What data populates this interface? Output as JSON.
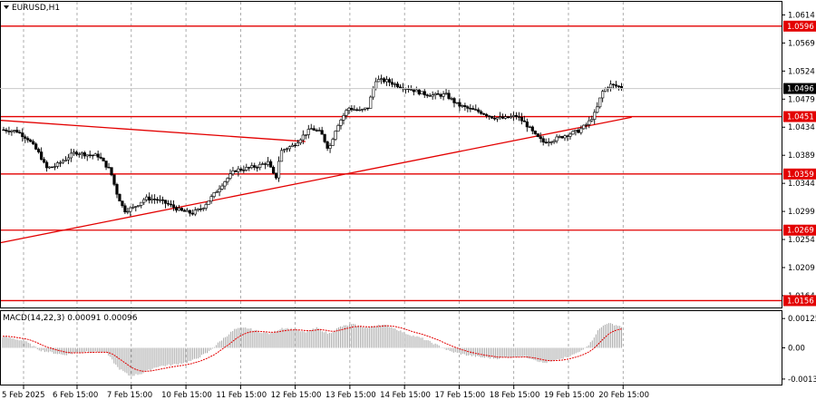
{
  "window": {
    "title": "EURUSD,H1",
    "title_icon": "triangle-down-icon"
  },
  "macd": {
    "label": "MACD(14,22,3) 0.00091 0.00096",
    "axis_labels": [
      "0.00125",
      "0.00",
      "-0.00133"
    ]
  },
  "colors": {
    "level_line": "#e30000",
    "candle": "#000000",
    "histogram": "#a8a8a8",
    "signal": "#e30000",
    "grid": "#8a8a8a",
    "badge": "#e30000",
    "current_price_bg": "#000000"
  },
  "chart_data": {
    "type": "candlestick",
    "symbol": "EURUSD",
    "timeframe": "H1",
    "y_ticks": [
      "1.0614",
      "1.0569",
      "1.0524",
      "1.0479",
      "1.0434",
      "1.0389",
      "1.0344",
      "1.0299",
      "1.0254",
      "1.0209",
      "1.0164"
    ],
    "y_range": [
      1.0145,
      1.0635
    ],
    "x_ticks": [
      "5 Feb 2025",
      "6 Feb 15:00",
      "7 Feb 15:00",
      "10 Feb 15:00",
      "11 Feb 15:00",
      "12 Feb 15:00",
      "13 Feb 15:00",
      "14 Feb 15:00",
      "17 Feb 15:00",
      "18 Feb 15:00",
      "19 Feb 15:00",
      "20 Feb 15:00"
    ],
    "current_price": "1.0496",
    "horizontal_levels": [
      "1.0596",
      "1.0451",
      "1.0359",
      "1.0269",
      "1.0156"
    ],
    "trend_lines": [
      {
        "name": "rising support",
        "from": {
          "x": "5 Feb 2025",
          "price": 1.0249
        },
        "to": {
          "x": "20 Feb 23:00",
          "price": 1.045
        }
      },
      {
        "name": "falling resistance",
        "from": {
          "x": "5 Feb 2025",
          "price": 1.0445
        },
        "to": {
          "x": "12 Feb 20:00",
          "price": 1.0411
        }
      }
    ],
    "price_path": [
      [
        0,
        1.043
      ],
      [
        0.02,
        1.0428
      ],
      [
        0.035,
        1.0415
      ],
      [
        0.05,
        1.039
      ],
      [
        0.058,
        1.0368
      ],
      [
        0.07,
        1.0372
      ],
      [
        0.085,
        1.0385
      ],
      [
        0.095,
        1.0394
      ],
      [
        0.11,
        1.039
      ],
      [
        0.125,
        1.0388
      ],
      [
        0.135,
        1.0372
      ],
      [
        0.14,
        1.0365
      ],
      [
        0.148,
        1.033
      ],
      [
        0.158,
        1.03
      ],
      [
        0.17,
        1.0305
      ],
      [
        0.185,
        1.032
      ],
      [
        0.2,
        1.0318
      ],
      [
        0.215,
        1.031
      ],
      [
        0.23,
        1.03
      ],
      [
        0.245,
        1.0296
      ],
      [
        0.258,
        1.0305
      ],
      [
        0.27,
        1.0322
      ],
      [
        0.285,
        1.0345
      ],
      [
        0.3,
        1.0365
      ],
      [
        0.315,
        1.0368
      ],
      [
        0.33,
        1.0372
      ],
      [
        0.342,
        1.0378
      ],
      [
        0.352,
        1.035
      ],
      [
        0.358,
        1.0395
      ],
      [
        0.365,
        1.04
      ],
      [
        0.375,
        1.0405
      ],
      [
        0.385,
        1.0418
      ],
      [
        0.398,
        1.0432
      ],
      [
        0.41,
        1.0425
      ],
      [
        0.42,
        1.0398
      ],
      [
        0.43,
        1.0435
      ],
      [
        0.445,
        1.0465
      ],
      [
        0.46,
        1.046
      ],
      [
        0.47,
        1.0465
      ],
      [
        0.48,
        1.051
      ],
      [
        0.495,
        1.0508
      ],
      [
        0.51,
        1.05
      ],
      [
        0.525,
        1.0495
      ],
      [
        0.54,
        1.0488
      ],
      [
        0.555,
        1.0485
      ],
      [
        0.57,
        1.0486
      ],
      [
        0.585,
        1.047
      ],
      [
        0.6,
        1.0463
      ],
      [
        0.615,
        1.0458
      ],
      [
        0.63,
        1.045
      ],
      [
        0.645,
        1.0448
      ],
      [
        0.66,
        1.0452
      ],
      [
        0.672,
        1.044
      ],
      [
        0.685,
        1.042
      ],
      [
        0.695,
        1.041
      ],
      [
        0.71,
        1.0415
      ],
      [
        0.725,
        1.0422
      ],
      [
        0.74,
        1.0428
      ],
      [
        0.752,
        1.044
      ],
      [
        0.762,
        1.0458
      ],
      [
        0.77,
        1.049
      ],
      [
        0.78,
        1.0502
      ],
      [
        0.795,
        1.0498
      ]
    ],
    "macd_hist_path": [
      [
        0,
        0.0005
      ],
      [
        0.03,
        0.0003
      ],
      [
        0.05,
        -0.0001
      ],
      [
        0.08,
        -0.0003
      ],
      [
        0.11,
        -0.00015
      ],
      [
        0.135,
        -0.0002
      ],
      [
        0.15,
        -0.00085
      ],
      [
        0.165,
        -0.0012
      ],
      [
        0.18,
        -0.0011
      ],
      [
        0.2,
        -0.0008
      ],
      [
        0.225,
        -0.0007
      ],
      [
        0.245,
        -0.00055
      ],
      [
        0.265,
        -0.0002
      ],
      [
        0.285,
        0.0004
      ],
      [
        0.3,
        0.0008
      ],
      [
        0.315,
        0.00085
      ],
      [
        0.33,
        0.0007
      ],
      [
        0.345,
        0.0006
      ],
      [
        0.36,
        0.00085
      ],
      [
        0.375,
        0.0008
      ],
      [
        0.39,
        0.00065
      ],
      [
        0.405,
        0.00085
      ],
      [
        0.42,
        0.0006
      ],
      [
        0.435,
        0.0009
      ],
      [
        0.45,
        0.001
      ],
      [
        0.47,
        0.00085
      ],
      [
        0.485,
        0.001
      ],
      [
        0.5,
        0.0009
      ],
      [
        0.52,
        0.0006
      ],
      [
        0.54,
        0.0004
      ],
      [
        0.56,
        0.0001
      ],
      [
        0.575,
        -0.00015
      ],
      [
        0.595,
        -0.0003
      ],
      [
        0.615,
        -0.0004
      ],
      [
        0.635,
        -0.00045
      ],
      [
        0.65,
        -0.0004
      ],
      [
        0.665,
        -0.00035
      ],
      [
        0.68,
        -0.00045
      ],
      [
        0.695,
        -0.00065
      ],
      [
        0.71,
        -0.00055
      ],
      [
        0.725,
        -0.0004
      ],
      [
        0.74,
        -0.0002
      ],
      [
        0.755,
        0.0002
      ],
      [
        0.765,
        0.00075
      ],
      [
        0.775,
        0.00105
      ],
      [
        0.785,
        0.001
      ],
      [
        0.795,
        0.00091
      ]
    ],
    "macd_range": [
      -0.00145,
      0.00145
    ]
  }
}
